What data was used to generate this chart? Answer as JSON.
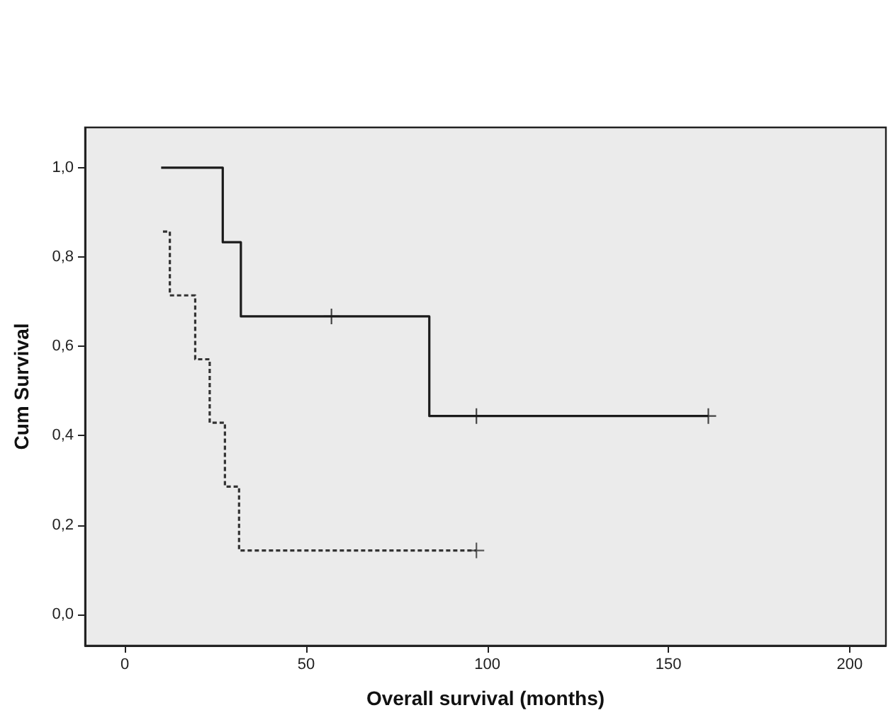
{
  "chart_data": {
    "type": "step",
    "xlabel": "Overall survival (months)",
    "ylabel": "Cum Survival",
    "xlim": [
      -11,
      210
    ],
    "xticks": [
      0,
      50,
      100,
      150,
      200
    ],
    "ylim": [
      -0.07,
      1.09
    ],
    "yticks": [
      {
        "value": 0,
        "label": "0,0"
      },
      {
        "value": 0.2,
        "label": "0,2"
      },
      {
        "value": 0.4,
        "label": "0,4"
      },
      {
        "value": 0.6,
        "label": "0,6"
      },
      {
        "value": 0.8,
        "label": "0,8"
      },
      {
        "value": 1,
        "label": "1,0"
      }
    ],
    "grid": false,
    "series": [
      {
        "type": "step",
        "color": "#1a1a1a",
        "line_style": "solid",
        "marker": "none",
        "x": [
          10,
          27,
          32,
          84,
          161
        ],
        "values": [
          1,
          0.833,
          0.667,
          0.444,
          0.444
        ]
      },
      {
        "type": "step",
        "color": "#333333",
        "line_style": "dashed",
        "marker": "none",
        "x": [
          10.5,
          12.4,
          19.4,
          23.4,
          27.6,
          31.5,
          97
        ],
        "values": [
          0.857,
          0.714,
          0.571,
          0.429,
          0.286,
          0.143,
          0.143
        ]
      },
      {
        "type": "scatter",
        "color": "#1a1a1a",
        "marker": "cross",
        "x": [
          57,
          97,
          161
        ],
        "values": [
          0.667,
          0.444,
          0.444
        ]
      },
      {
        "type": "scatter",
        "color": "#333333",
        "marker": "cross",
        "x": [
          97
        ],
        "values": [
          0.143
        ]
      }
    ]
  }
}
